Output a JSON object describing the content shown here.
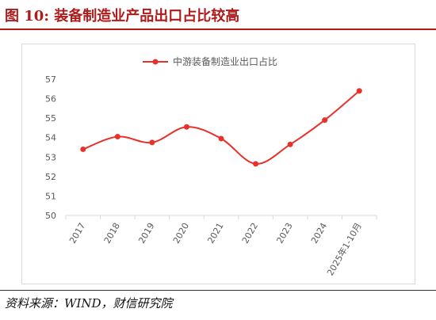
{
  "figure": {
    "title": "图 10:  装备制造业产品出口占比较高",
    "source": "资料来源：WIND，财信研究院"
  },
  "colors": {
    "series": "#e8312b",
    "title": "#b11a1a",
    "axis": "#d9d9d9",
    "text": "#595959"
  },
  "chart_data": {
    "type": "line",
    "title": "",
    "xlabel": "",
    "ylabel": "",
    "categories": [
      "2017",
      "2018",
      "2019",
      "2020",
      "2021",
      "2022",
      "2023",
      "2024",
      "2025年1-10月"
    ],
    "series": [
      {
        "name": "中游装备制造业出口占比",
        "values": [
          53.4,
          54.05,
          53.75,
          54.55,
          53.95,
          52.65,
          53.65,
          54.9,
          56.4
        ],
        "smooth": true,
        "markers": true
      }
    ],
    "ylim": [
      50,
      57
    ],
    "yticks": [
      50,
      51,
      52,
      53,
      54,
      55,
      56,
      57
    ],
    "grid": false,
    "legend": "top-center",
    "x_tick_rotation": "-60deg"
  }
}
